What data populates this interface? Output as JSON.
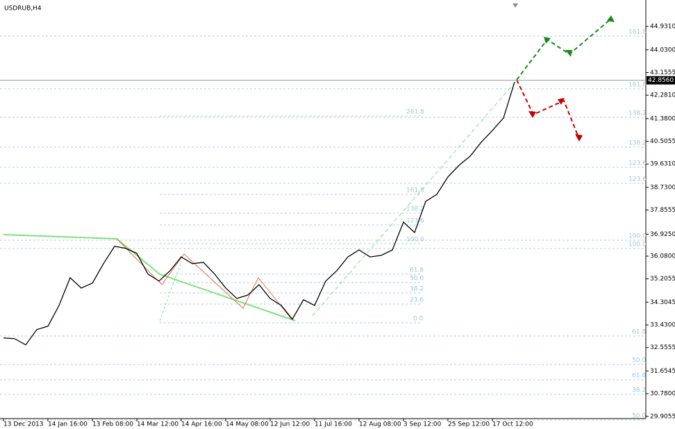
{
  "chart_data": {
    "type": "line",
    "title": "USDRUB,H4",
    "categories": [
      "13 Dec 2013",
      null,
      null,
      null,
      "14 Jan 16:00",
      null,
      null,
      null,
      "13 Feb 08:00",
      null,
      null,
      null,
      "14 Mar 12:00",
      null,
      null,
      null,
      "14 Apr 16:00",
      null,
      null,
      null,
      "14 May 08:00",
      null,
      null,
      null,
      "12 Jun 12:00",
      null,
      null,
      null,
      "11 Jul 16:00",
      null,
      null,
      null,
      "12 Aug 08:00",
      null,
      null,
      null,
      "3 Sep 12:00",
      null,
      null,
      null,
      "25 Sep 12:00",
      null,
      null,
      null,
      "17 Oct 12:00",
      null,
      null
    ],
    "series": [
      {
        "name": "USDRUB",
        "color": "#000000",
        "values": [
          32.93,
          32.9,
          32.66,
          33.25,
          33.38,
          34.18,
          35.25,
          34.85,
          35.04,
          35.79,
          36.46,
          36.38,
          36.19,
          35.39,
          35.12,
          35.52,
          36.05,
          35.79,
          35.84,
          35.39,
          34.85,
          34.45,
          34.58,
          34.98,
          34.45,
          34.18,
          33.65,
          34.4,
          34.18,
          35.12,
          35.52,
          36.05,
          36.32,
          36.05,
          36.11,
          36.32,
          37.39,
          36.99,
          38.19,
          38.46,
          39.13,
          39.58,
          39.93,
          40.47,
          40.92,
          41.4,
          42.79
        ]
      }
    ],
    "ylim": [
      29.82,
      45.95
    ],
    "yticks": [
      {
        "value": 44.931,
        "label": "44.9310"
      },
      {
        "value": 44.03,
        "label": "44.0300"
      },
      {
        "value": 43.1555,
        "label": "43.1555"
      },
      {
        "value": 42.281,
        "label": "42.2810"
      },
      {
        "value": 41.38,
        "label": "41.3800"
      },
      {
        "value": 40.5055,
        "label": "40.5055"
      },
      {
        "value": 39.631,
        "label": "39.6310"
      },
      {
        "value": 38.73,
        "label": "38.7300"
      },
      {
        "value": 37.8555,
        "label": "37.8555"
      },
      {
        "value": 36.925,
        "label": "36.9250"
      },
      {
        "value": 36.08,
        "label": "36.0800"
      },
      {
        "value": 35.2055,
        "label": "35.2055"
      },
      {
        "value": 34.3045,
        "label": "34.3045"
      },
      {
        "value": 33.43,
        "label": "33.4300"
      },
      {
        "value": 32.5555,
        "label": "32.5555"
      },
      {
        "value": 31.6545,
        "label": "31.6545"
      },
      {
        "value": 30.78,
        "label": "30.7800"
      },
      {
        "value": 29.9055,
        "label": "29.9055"
      }
    ],
    "current_price": {
      "value": 42.856,
      "label": "42.8560"
    },
    "annotations": [
      "161.8",
      "161.8",
      "138.2",
      "138.2",
      "123.6",
      "123.6",
      "100.0",
      "100.0",
      "61.8",
      "50.0",
      "61.8",
      "38.2",
      "50.0",
      "261.8",
      "161.8",
      "138.2",
      "123.6",
      "100.0",
      "61.8",
      "50.0",
      "38.2",
      "23.6",
      "0.0"
    ]
  }
}
